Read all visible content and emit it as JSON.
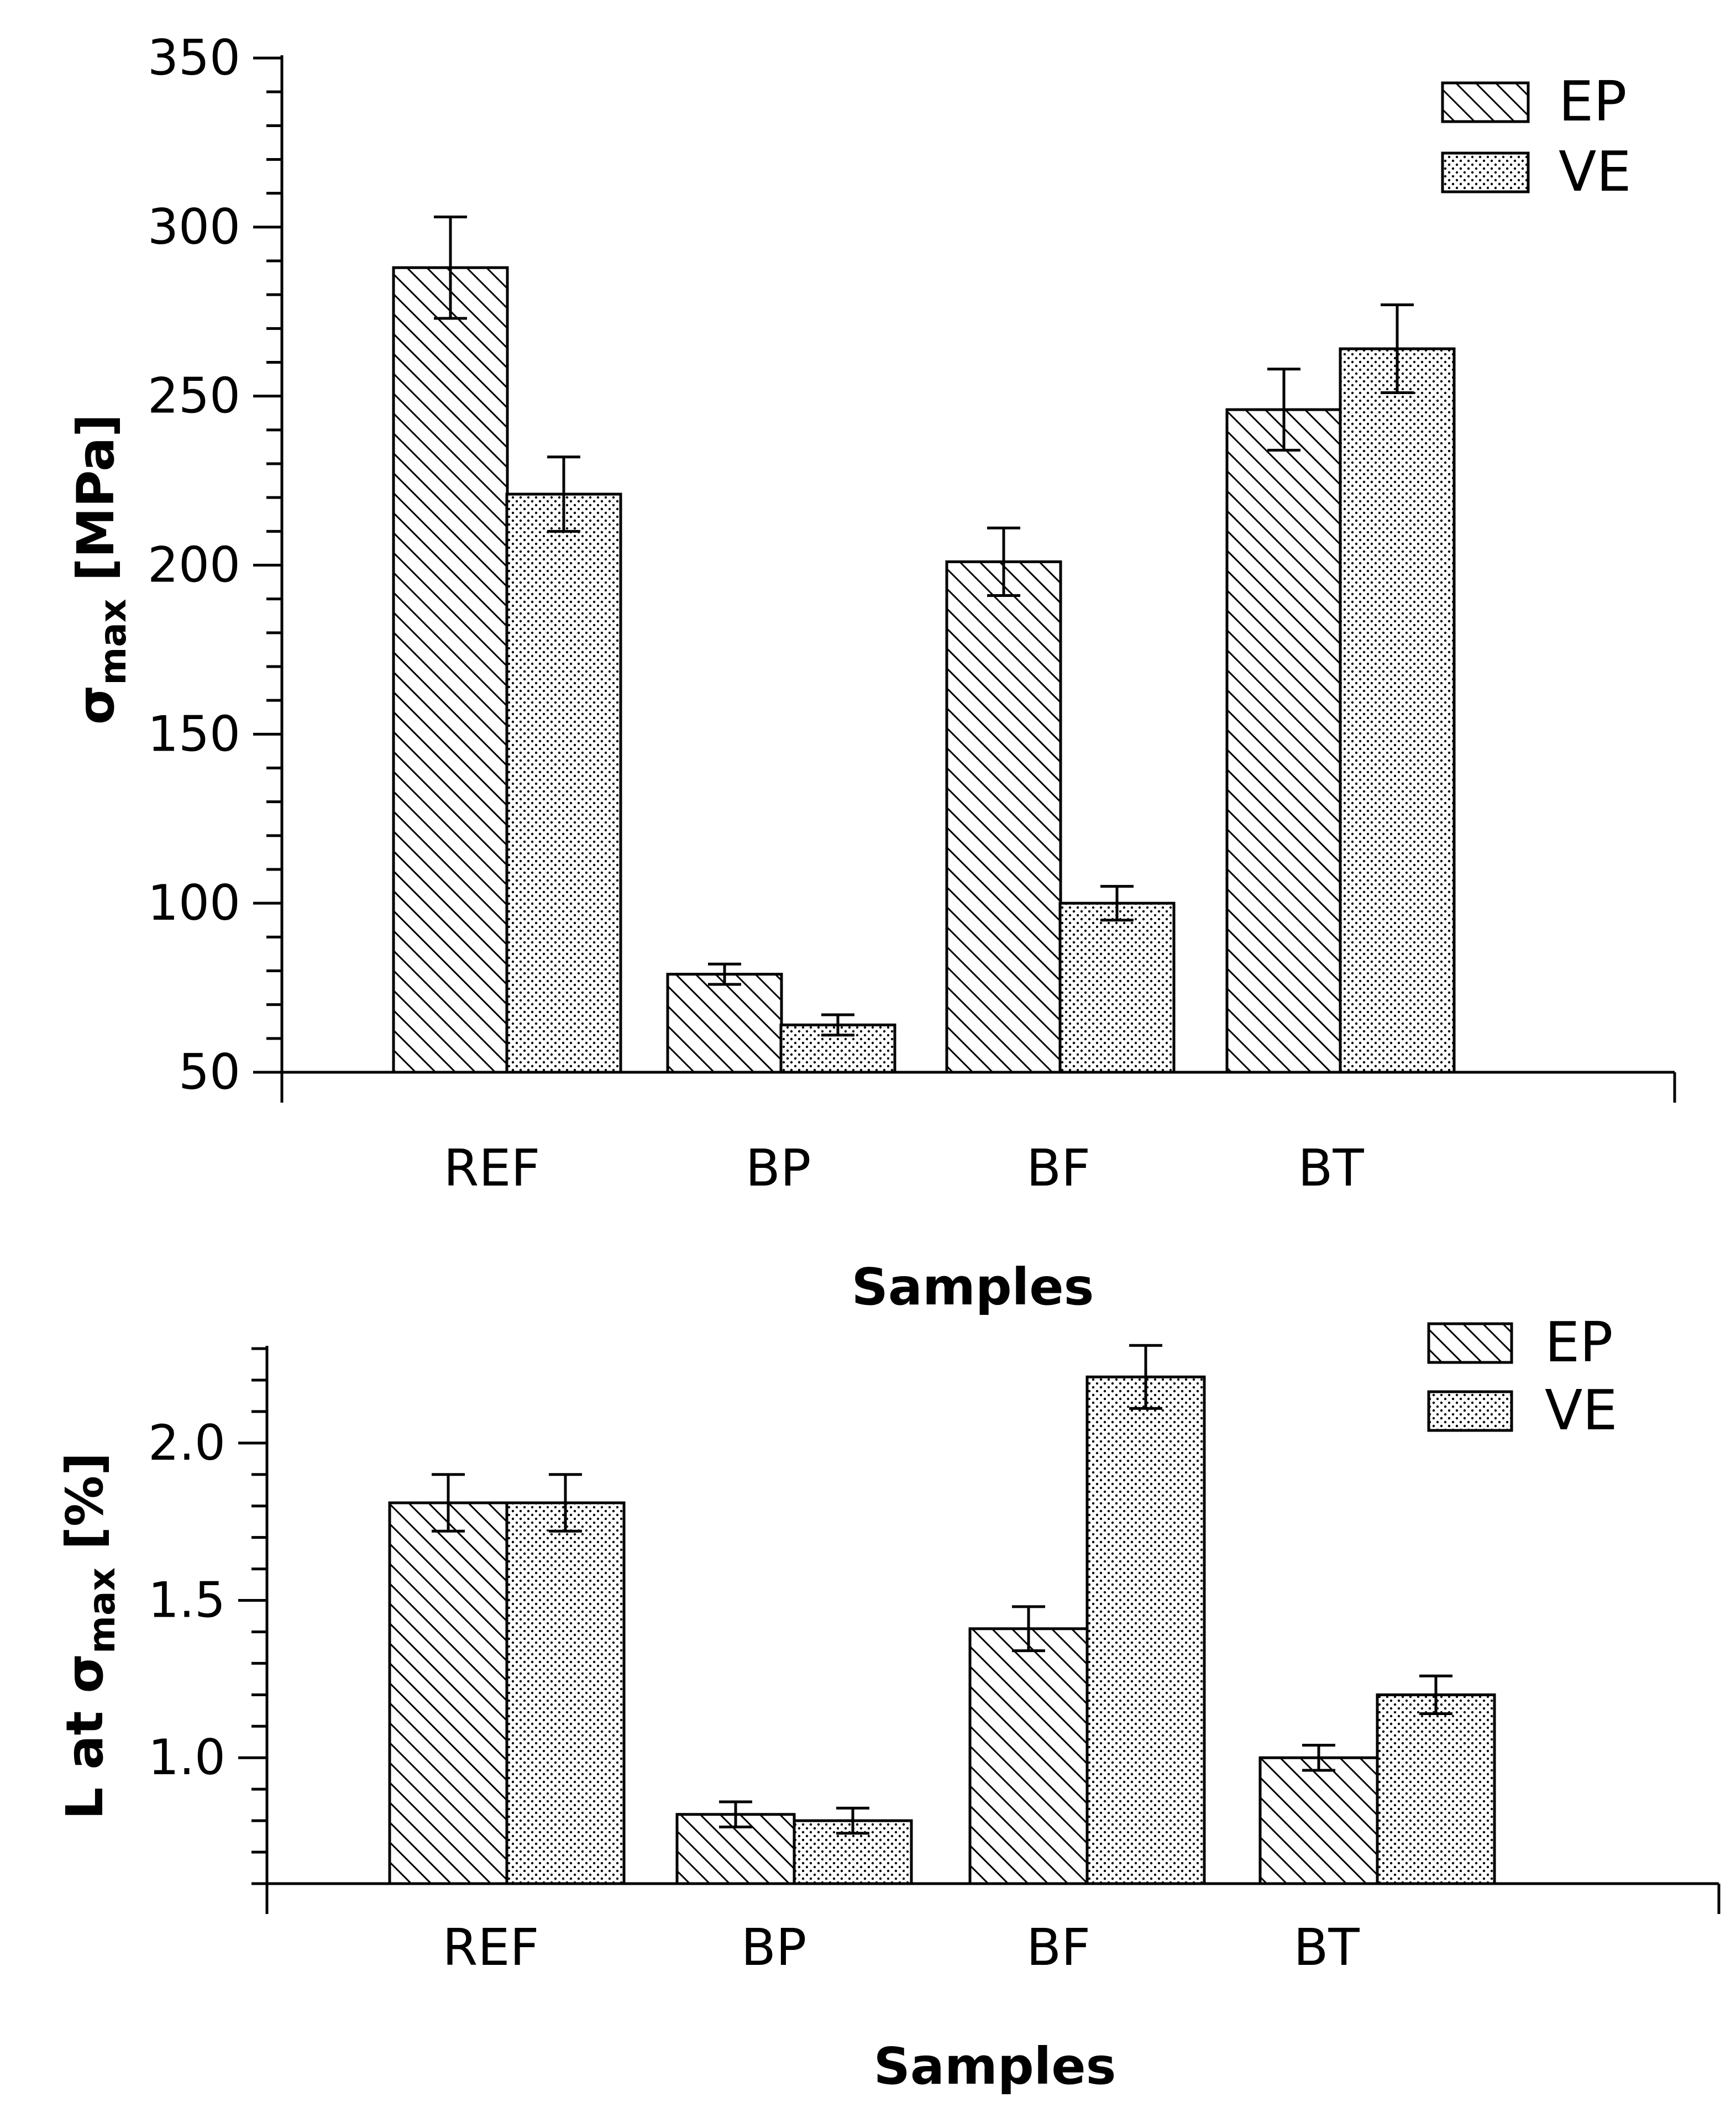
{
  "chart_data": [
    {
      "type": "bar",
      "categories": [
        "REF",
        "BP",
        "BF",
        "BT"
      ],
      "series": [
        {
          "name": "EP",
          "pattern": "hatch",
          "values": [
            288,
            79,
            201,
            246
          ],
          "errors": [
            15,
            3,
            10,
            12
          ]
        },
        {
          "name": "VE",
          "pattern": "dots",
          "values": [
            221,
            64,
            100,
            264
          ],
          "errors": [
            11,
            3,
            5,
            13
          ]
        }
      ],
      "xlabel": "Samples",
      "ylabel": {
        "main": "σ",
        "sub": "max",
        "unit": " [MPa]"
      },
      "ylim": [
        50,
        350
      ],
      "yticks": [
        "50",
        "100",
        "150",
        "200",
        "250",
        "300",
        "350"
      ],
      "legend": "top-right"
    },
    {
      "type": "bar",
      "categories": [
        "REF",
        "BP",
        "BF",
        "BT"
      ],
      "series": [
        {
          "name": "EP",
          "pattern": "hatch",
          "values": [
            1.81,
            0.82,
            1.41,
            1.0
          ],
          "errors": [
            0.09,
            0.04,
            0.07,
            0.04
          ]
        },
        {
          "name": "VE",
          "pattern": "dots",
          "values": [
            1.81,
            0.8,
            2.21,
            1.2
          ],
          "errors": [
            0.09,
            0.04,
            0.1,
            0.06
          ]
        }
      ],
      "xlabel": "Samples",
      "ylabel": {
        "main": "L at σ",
        "sub": "max",
        "unit": " [%]"
      },
      "ylim": [
        0.6,
        2.3
      ],
      "yticks": [
        "1.0",
        "1.5",
        "2.0"
      ],
      "legend": "top-right"
    }
  ],
  "colors": {
    "bar_fill": "#ffffff",
    "ink": "#000000"
  }
}
